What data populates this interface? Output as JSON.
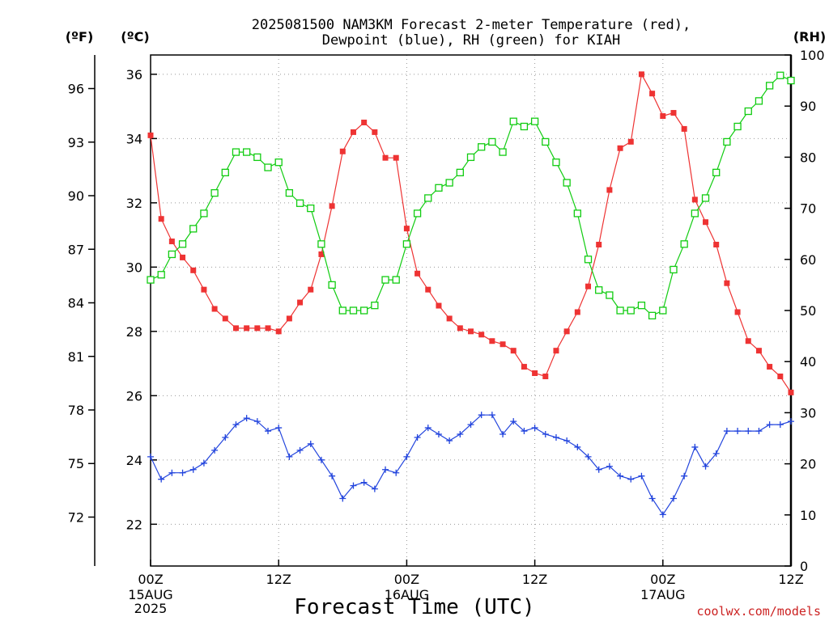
{
  "chart_data": {
    "type": "line",
    "title_line1": "2025081500 NAM3KM Forecast 2-meter Temperature (red),",
    "title_line2": "Dewpoint (blue), RH (green) for KIAH",
    "xlabel": "Forecast Time (UTC)",
    "credit": "coolwx.com/models",
    "units": {
      "fahrenheit": "(ºF)",
      "celsius": "(ºC)",
      "rh": "(RH)"
    },
    "x_ticks": [
      {
        "hour": 0,
        "label": "00Z",
        "date": "15AUG",
        "year": "2025"
      },
      {
        "hour": 12,
        "label": "12Z",
        "date": "",
        "year": ""
      },
      {
        "hour": 24,
        "label": "00Z",
        "date": "16AUG",
        "year": ""
      },
      {
        "hour": 36,
        "label": "12Z",
        "date": "",
        "year": ""
      },
      {
        "hour": 48,
        "label": "00Z",
        "date": "17AUG",
        "year": ""
      },
      {
        "hour": 60,
        "label": "12Z",
        "date": "",
        "year": ""
      }
    ],
    "xlim": [
      0,
      60
    ],
    "celsius_ticks": [
      22,
      24,
      26,
      28,
      30,
      32,
      34,
      36
    ],
    "celsius_lim": [
      20.7,
      36.6
    ],
    "fahrenheit_ticks": [
      72,
      75,
      78,
      81,
      84,
      87,
      90,
      93,
      96
    ],
    "rh_ticks": [
      0,
      10,
      20,
      30,
      40,
      50,
      60,
      70,
      80,
      90,
      100
    ],
    "rh_lim": [
      0,
      100
    ],
    "grid": true,
    "colors": {
      "temperature": "#ee3333",
      "dewpoint": "#2244dd",
      "rh": "#11cc11"
    },
    "series": [
      {
        "name": "2-meter Temperature",
        "axis": "celsius",
        "marker": "filled-square",
        "values": [
          34.1,
          31.5,
          30.8,
          30.3,
          29.9,
          29.3,
          28.7,
          28.4,
          28.1,
          28.1,
          28.1,
          28.1,
          28.0,
          28.4,
          28.9,
          29.3,
          30.4,
          31.9,
          33.6,
          34.2,
          34.5,
          34.2,
          33.4,
          33.4,
          31.2,
          29.8,
          29.3,
          28.8,
          28.4,
          28.1,
          28.0,
          27.9,
          27.7,
          27.6,
          27.4,
          26.9,
          26.7,
          26.6,
          27.4,
          28.0,
          28.6,
          29.4,
          30.7,
          32.4,
          33.7,
          33.9,
          36.0,
          35.4,
          34.7,
          34.8,
          34.3,
          32.1,
          31.4,
          30.7,
          29.5,
          28.6,
          27.7,
          27.4,
          26.9,
          26.6,
          26.1
        ]
      },
      {
        "name": "Dewpoint",
        "axis": "celsius",
        "marker": "plus",
        "values": [
          24.1,
          23.4,
          23.6,
          23.6,
          23.7,
          23.9,
          24.3,
          24.7,
          25.1,
          25.3,
          25.2,
          24.9,
          25.0,
          24.1,
          24.3,
          24.5,
          24.0,
          23.5,
          22.8,
          23.2,
          23.3,
          23.1,
          23.7,
          23.6,
          24.1,
          24.7,
          25.0,
          24.8,
          24.6,
          24.8,
          25.1,
          25.4,
          25.4,
          24.8,
          25.2,
          24.9,
          25.0,
          24.8,
          24.7,
          24.6,
          24.4,
          24.1,
          23.7,
          23.8,
          23.5,
          23.4,
          23.5,
          22.8,
          22.3,
          22.8,
          23.5,
          24.4,
          23.8,
          24.2,
          24.9,
          24.9,
          24.9,
          24.9,
          25.1,
          25.1,
          25.2
        ]
      },
      {
        "name": "RH",
        "axis": "rh",
        "marker": "open-square",
        "values": [
          56,
          57,
          61,
          63,
          66,
          69,
          73,
          77,
          81,
          81,
          80,
          78,
          79,
          73,
          71,
          70,
          63,
          55,
          50,
          50,
          50,
          51,
          56,
          56,
          63,
          69,
          72,
          74,
          75,
          77,
          80,
          82,
          83,
          81,
          87,
          86,
          87,
          83,
          79,
          75,
          69,
          60,
          54,
          53,
          50,
          50,
          51,
          49,
          50,
          58,
          63,
          69,
          72,
          77,
          83,
          86,
          89,
          91,
          94,
          96,
          95
        ]
      }
    ]
  }
}
